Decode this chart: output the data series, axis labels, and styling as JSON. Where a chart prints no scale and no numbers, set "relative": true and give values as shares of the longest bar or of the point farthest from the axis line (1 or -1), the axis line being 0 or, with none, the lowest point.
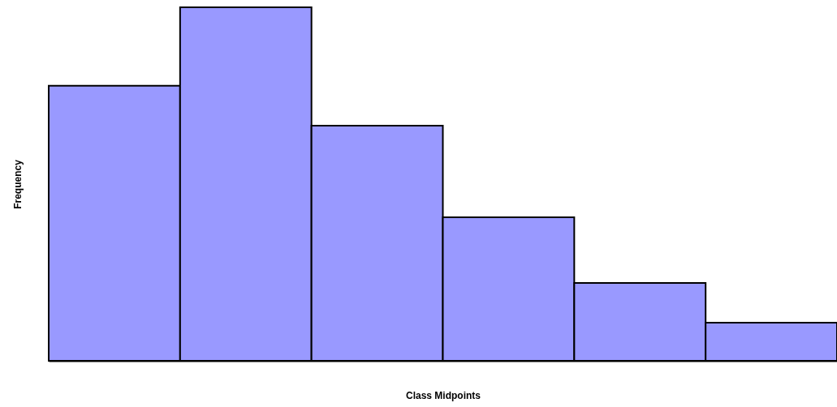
{
  "chart_data": {
    "type": "bar",
    "categories": [
      null,
      null,
      null,
      null,
      null,
      null
    ],
    "values": [
      0.778,
      1,
      0.665,
      0.406,
      0.22,
      0.108
    ],
    "relative": true,
    "color": "#9999ff",
    "xlabel": "Class Midpoints",
    "ylabel": "Frequency",
    "grid": false
  }
}
